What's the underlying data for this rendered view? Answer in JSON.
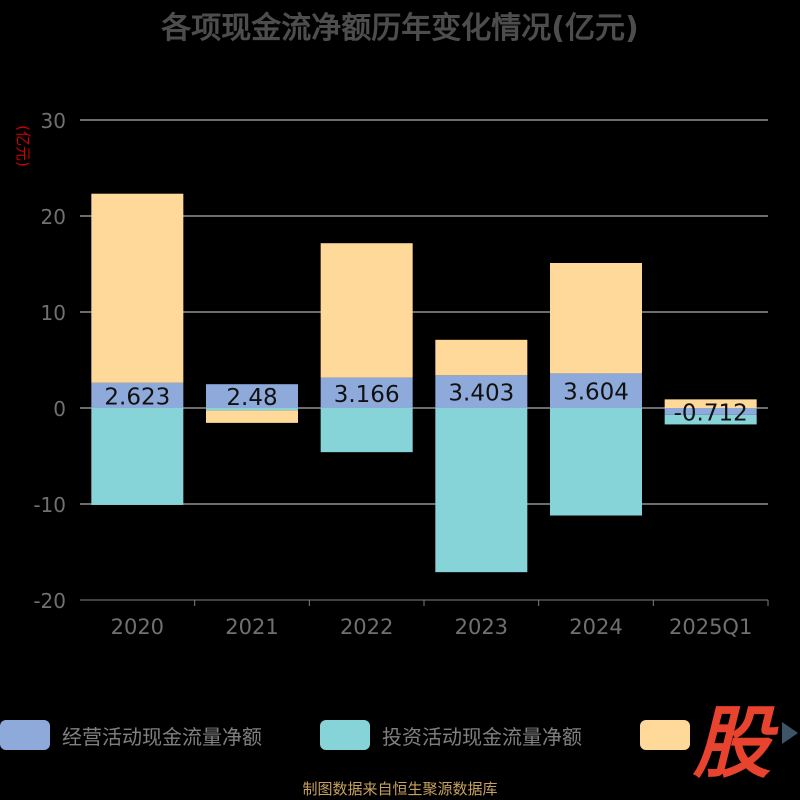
{
  "chart_data": {
    "type": "bar",
    "stacked": true,
    "title": "各项现金流净额历年变化情况(亿元)",
    "ylabel": "(亿元)",
    "ylim": [
      -20,
      30
    ],
    "yticks": [
      30,
      20,
      10,
      0,
      -10,
      -20
    ],
    "grid": true,
    "categories": [
      "2020",
      "2021",
      "2022",
      "2023",
      "2024",
      "2025Q1"
    ],
    "series": [
      {
        "name": "经营活动现金流量净额",
        "color": "#8eaadb",
        "values": [
          2.623,
          2.48,
          3.166,
          3.403,
          3.604,
          -0.712
        ],
        "labels": [
          "2.623",
          "2.48",
          "3.166",
          "3.403",
          "3.604",
          "-0.712"
        ]
      },
      {
        "name": "投资活动现金流量净额",
        "color": "#86d4d8",
        "values": [
          -10.1,
          -0.25,
          -4.6,
          -17.1,
          -11.2,
          -1.0
        ]
      },
      {
        "color": "#ffd99a",
        "values": [
          19.7,
          -1.3,
          14.0,
          3.7,
          11.5,
          0.9
        ]
      }
    ],
    "legend_position": "bottom"
  },
  "logo_text": "股",
  "source": "制图数据来自恒生聚源数据库",
  "colors": {
    "background": "#000000",
    "title": "#4d4d4d",
    "axis_label": "#cc0000",
    "tick": "#707070",
    "grid": "#d9d9d9",
    "axis": "#808080",
    "logo": "#e8432e",
    "source": "#c8a060"
  }
}
